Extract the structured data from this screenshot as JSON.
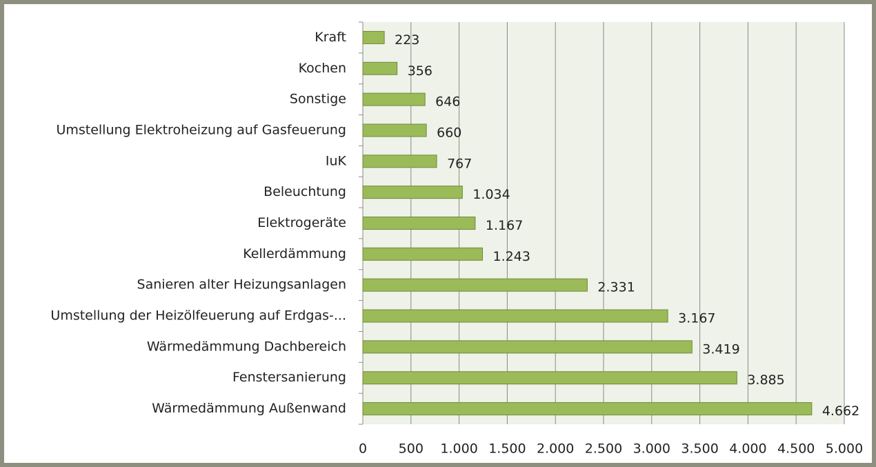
{
  "chart_data": {
    "type": "bar",
    "orientation": "horizontal",
    "categories": [
      "Kraft",
      "Kochen",
      "Sonstige",
      "Umstellung Elektroheizung auf Gasfeuerung",
      "IuK",
      "Beleuchtung",
      "Elektrogeräte",
      "Kellerdämmung",
      "Sanieren alter Heizungsanlagen",
      "Umstellung der Heizölfeuerung auf Erdgas-...",
      "Wärmedämmung Dachbereich",
      "Fenstersanierung",
      "Wärmedämmung Außenwand"
    ],
    "values": [
      223,
      356,
      646,
      660,
      767,
      1034,
      1167,
      1243,
      2331,
      3167,
      3419,
      3885,
      4662
    ],
    "value_labels": [
      "223",
      "356",
      "646",
      "660",
      "767",
      "1.034",
      "1.167",
      "1.243",
      "2.331",
      "3.167",
      "3.419",
      "3.885",
      "4.662"
    ],
    "color": "#9bbb59",
    "xlim": [
      0,
      5000
    ],
    "xticks": [
      0,
      500,
      {
        "value": 1000,
        "label": "1.000"
      },
      {
        "value": 1500,
        "label": "1.500"
      },
      {
        "value": 2000,
        "label": "2.000"
      },
      {
        "value": 2500,
        "label": "2.500"
      },
      {
        "value": 3000,
        "label": "3.000"
      },
      {
        "value": 3500,
        "label": "3.500"
      },
      {
        "value": 4000,
        "label": "4.000"
      },
      {
        "value": 4500,
        "label": "4.500"
      },
      {
        "value": 5000,
        "label": "5.000"
      }
    ],
    "grid": true
  }
}
